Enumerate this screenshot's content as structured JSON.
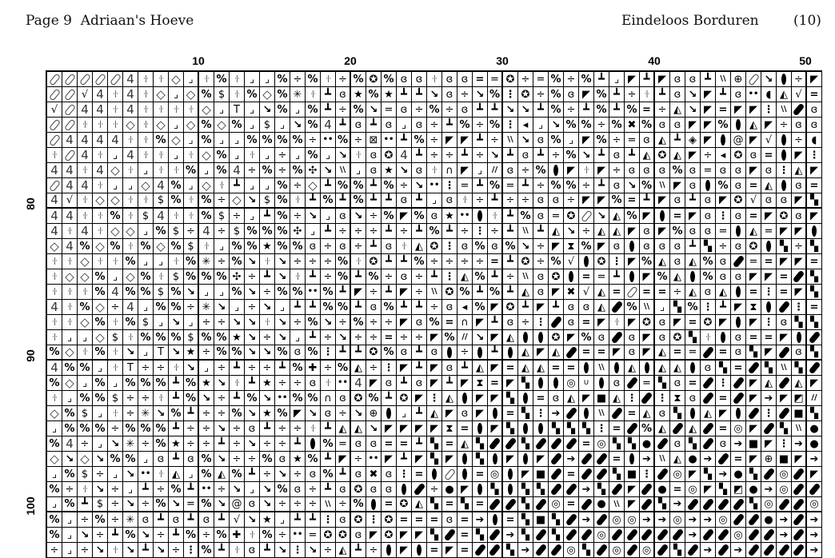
{
  "header": {
    "left": "Page 9  Adriaan's Hoeve",
    "title": "Eindeloos Borduren",
    "page_number": "(10)"
  },
  "column_labels": [
    "10",
    "20",
    "30",
    "40",
    "50"
  ],
  "row_labels": [
    "80",
    "90",
    "100"
  ],
  "symbols": {
    "o": "oval-outline",
    "4": "four",
    "i": "dot-bar-dot",
    "d": "diamond-outline",
    "j": "corner-dot",
    "p": "percent",
    "$": "dollar",
    "v": "check-root",
    "T": "tee",
    "k": "diagonal-ball",
    "l": "inverted-tee",
    "x": "divide",
    "*": "asterisk",
    "s": "star",
    "G": "spiral",
    "=": "bold-equals",
    "e": "thin-equals",
    "P": "corner-triangle",
    "O": "circled-star",
    "D": "double-dot",
    "C": "crescent",
    "A": "filled-triangle-outline",
    ":": "vertical-dots",
    "E": "filled-ellipse",
    "B": "filled-pill",
    "W": "triple-slash",
    "Q": "crosshair",
    "X": "heavy-x",
    "H": "diamond-line",
    "@": "at-spiral",
    "q": "half-dot",
    "Z": "hourglass",
    "R": "arrow-right",
    "N": "black-square",
    "n": "quadrant-square",
    "h": "hexagon",
    "c": "ring",
    "r": "half-square",
    "/": "double-slash",
    "F": "flower",
    "Y": "boxed-x",
    "U": "arch-arrow",
    "+": "heavy-cross",
    "u": "small-cup"
  },
  "pattern": {
    "rows": [
      "ooooo4iidjipijjpxpixpOpGGiGG=eOxepxpljPlPGGlWQokExP",
      "oov4i4idjdp$ipdp*ilGspsllkGxkp:OxpGPplxilGkPlGDCAv=",
      "vo44i4iiiidjTjkpjplxpkeGxpxGllkklpxlplp=xAkP=PP:WBG",
      "ooiiididjdpdpj$jkp4lGlGjGxlpxp:qjkppxpXpGGPPpEAPxGG",
      "o4444iipdjpjjppppxDpxYDlpxPPlxWkGpjPpxeGAlHPE@PvExC",
      "io4ij4iijidpjijxjpjkiGO4lxxlxklGlxpklGlAOAPxqOG=EP:",
      "44i4dijiipjp4xpxpFkWjGskGiUPj/GxpEPiPxGGGpGeGGPG:AP",
      "o44ijjd4pjdiljjpxdlpplpxkD:elpelxppxlGkpWPGEpG=AEG=",
      "4viddii$pipxdk$pilplpllGljGixlxxGGxPPp=lPGlGPOvGGPn",
      "44iipi$4iip$xjlpxkjGkxpPpGsDEilpGeOokApPE=PG:G=POGP",
      "4i4iddjp$x4x$pppFjlxxxlxlplx:xlWlAkxAAPGPpGGeEAePPE",
      "d4pdpipdp$ijppsppGxGxlGiAO:GpGpkxPZpPGEGGGlnxGOEnxn",
      "iidiipjjip*xpkikxxxpiOllpxxxx=lOxpvEO:PpAGApGBe=PP=",
      "iddpjdpi$pppFxlkilxplpxGxl:AplxWGOE=elEPpAEpGGPP=Bn",
      "iiip4pp$pkjjpkxppDplPxlPxWOplplAGPXvA=o==xAGAE=:=Pn",
      "4ipdx4jppx*kjxkjllpplGpllxGqpPOlPlGGABpWjnp:lPZEB:=",
      "iidpip$jkjxxkkikxpkxpxxPGp=UPlGx:BG=PiPOGP=OPEP:Gnn",
      "ijjd$ippp$ppskxkjlxkxx=xxPp/kPAEEOPpGBGPGOniEG==PEB",
      "pdipikjTksxppkkpGp:llOpGlGExElEAPAB==PGPA=eB=GnPBGn",
      "4ppjiTxxikjxlxxlp+xpAx:PlPGlAP=AA==EWEAEAAEGn=BnWnB",
      "pdjpjppplpskilsxxGiD4PGlGPlPZ=PnEEcuEGBenG=B:BPABAP",
      "ijpp$xxilpkxlpkDppUGOplOP:AEPPnE=GAPNA:B:ZGB=BPRPr/",
      "dp$jix*kplxxpkspPkGxkQEjlAPGPE=n:RBEWB=AGnEAPEB:BNn",
      "jpppxppplxxkxGlxxilAAkPPPPZ=EPnEEnnn:=BpABAB=cPBnWh",
      "p4xjk*xpsxxlxkxxlEpeGG==ln=AnBBnBBB=cnnhBGnBGRNP:Rh",
      "dkdkppjGlGpkxxpGsplPxDPlPnPEnEPEPBRBB=ERWAhRB=PQNPR",
      "jp$xjkDiAjpAplxkxGplGXG:=EoE=cEPNB=BBnN:BcPnRhnBcBP",
      "pxikxjlxplDxkjkpGxlGOGGEBxhPEnEnnBBRnBPBh=cPnrhRcBB",
      "jpl$xkxpkepk@GkxxxWxpE=OAn=n=BBnBc=BhWPBnRBBBBncBBc",
      "pjxpx*GlGlGlvksjll:GO:O===G=RE=nNnBRBccRRcRRcBBhRBR",
      "pjkxlpkxlpxp+ipxDeOOGPOPPnB=nBRnBnBBcBBBBBRBBcBBRBR",
      "xjxkiklkx:pliGlk:kxAlxEPE=P=BBnRBBcnBcBcBnBRBRBBBBR"
    ]
  }
}
